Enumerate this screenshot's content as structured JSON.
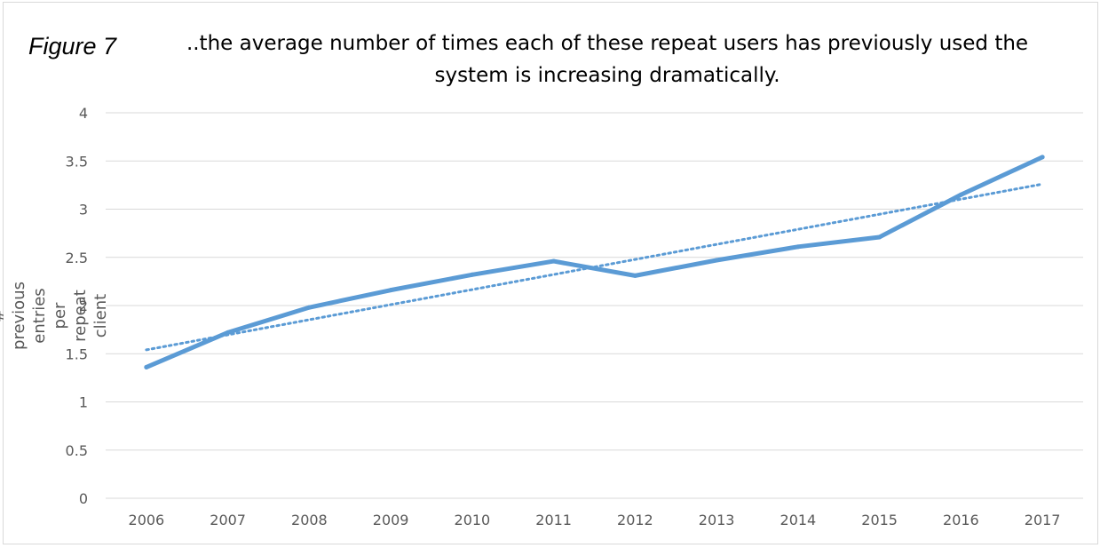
{
  "figure_label": "Figure 7",
  "chart_data": {
    "type": "line",
    "title": "..the average number of times each of these repeat users has previously used the system is increasing dramatically.",
    "xlabel": "",
    "ylabel": "average # previous entries per repeat client",
    "categories": [
      "2006",
      "2007",
      "2008",
      "2009",
      "2010",
      "2011",
      "2012",
      "2013",
      "2014",
      "2015",
      "2016",
      "2017"
    ],
    "series": [
      {
        "values": [
          1.36,
          1.72,
          1.98,
          2.16,
          2.32,
          2.46,
          2.31,
          2.47,
          2.61,
          2.71,
          3.15,
          3.54
        ],
        "color": "#5b9bd5",
        "style": "solid"
      }
    ],
    "trendline": {
      "type": "linear",
      "start": 1.54,
      "end": 3.26,
      "color": "#5b9bd5",
      "style": "dotted"
    },
    "ylim": [
      0,
      4
    ],
    "yticks": [
      "0",
      "0.5",
      "1",
      "1.5",
      "2",
      "2.5",
      "3",
      "3.5",
      "4"
    ],
    "grid": true,
    "legend": "none"
  }
}
